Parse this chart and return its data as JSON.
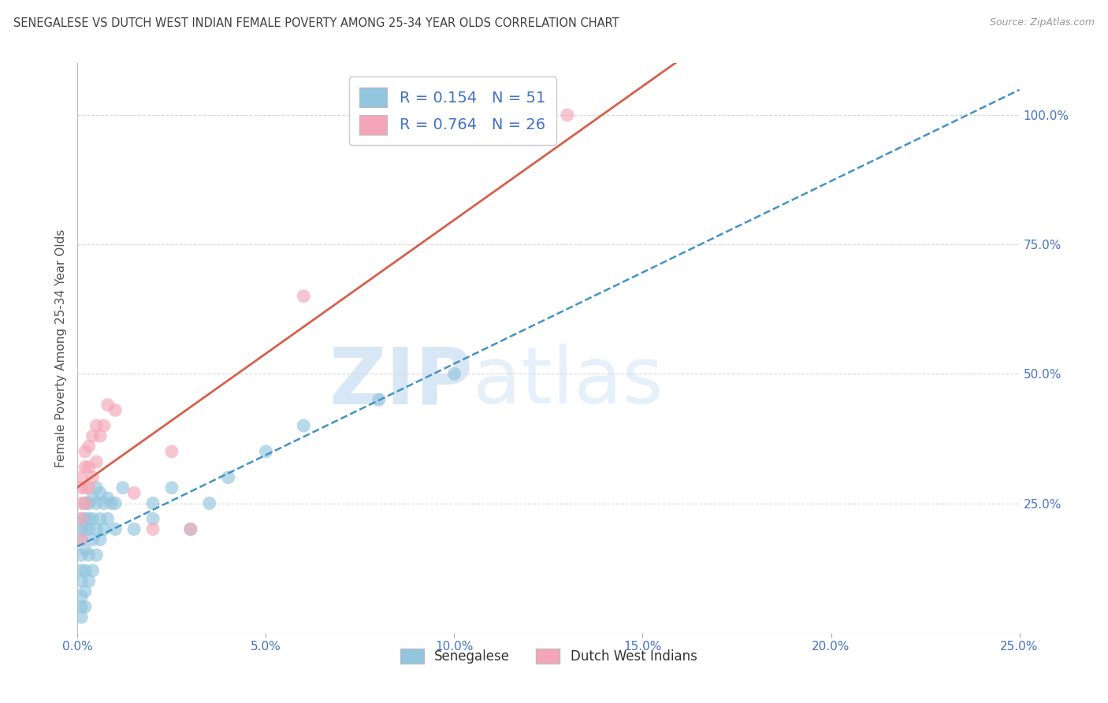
{
  "title": "SENEGALESE VS DUTCH WEST INDIAN FEMALE POVERTY AMONG 25-34 YEAR OLDS CORRELATION CHART",
  "source": "Source: ZipAtlas.com",
  "ylabel": "Female Poverty Among 25-34 Year Olds",
  "xlim": [
    0.0,
    0.25
  ],
  "ylim": [
    0.0,
    1.1
  ],
  "xtick_labels": [
    "0.0%",
    "5.0%",
    "10.0%",
    "15.0%",
    "20.0%",
    "25.0%"
  ],
  "xtick_vals": [
    0.0,
    0.05,
    0.1,
    0.15,
    0.2,
    0.25
  ],
  "ytick_labels_right": [
    "25.0%",
    "50.0%",
    "75.0%",
    "100.0%"
  ],
  "ytick_vals_right": [
    0.25,
    0.5,
    0.75,
    1.0
  ],
  "legend_label1": "Senegalese",
  "legend_label2": "Dutch West Indians",
  "legend_r1": "R = 0.154",
  "legend_n1": "N = 51",
  "legend_r2": "R = 0.764",
  "legend_n2": "N = 26",
  "blue_scatter_color": "#92c5de",
  "pink_scatter_color": "#f4a6b8",
  "blue_line_color": "#4393c3",
  "pink_line_color": "#d6604d",
  "background_color": "#ffffff",
  "watermark": "ZIPatlas",
  "watermark_color": "#d0e8f8",
  "grid_color": "#d8d8d8",
  "title_color": "#404040",
  "axis_color": "#4472c4",
  "senegalese_x": [
    0.001,
    0.001,
    0.001,
    0.001,
    0.001,
    0.001,
    0.001,
    0.001,
    0.001,
    0.002,
    0.002,
    0.002,
    0.002,
    0.002,
    0.002,
    0.002,
    0.003,
    0.003,
    0.003,
    0.003,
    0.003,
    0.004,
    0.004,
    0.004,
    0.004,
    0.005,
    0.005,
    0.005,
    0.005,
    0.006,
    0.006,
    0.006,
    0.007,
    0.007,
    0.008,
    0.008,
    0.009,
    0.01,
    0.01,
    0.012,
    0.015,
    0.02,
    0.02,
    0.025,
    0.03,
    0.035,
    0.04,
    0.05,
    0.06,
    0.08,
    0.1
  ],
  "senegalese_y": [
    0.03,
    0.05,
    0.07,
    0.1,
    0.12,
    0.15,
    0.18,
    0.2,
    0.22,
    0.05,
    0.08,
    0.12,
    0.16,
    0.2,
    0.22,
    0.25,
    0.1,
    0.15,
    0.2,
    0.22,
    0.25,
    0.12,
    0.18,
    0.22,
    0.26,
    0.15,
    0.2,
    0.25,
    0.28,
    0.18,
    0.22,
    0.27,
    0.2,
    0.25,
    0.22,
    0.26,
    0.25,
    0.2,
    0.25,
    0.28,
    0.2,
    0.22,
    0.25,
    0.28,
    0.2,
    0.25,
    0.3,
    0.35,
    0.4,
    0.45,
    0.5
  ],
  "dutch_x": [
    0.001,
    0.001,
    0.001,
    0.001,
    0.001,
    0.002,
    0.002,
    0.002,
    0.002,
    0.003,
    0.003,
    0.003,
    0.004,
    0.004,
    0.005,
    0.005,
    0.006,
    0.007,
    0.008,
    0.01,
    0.015,
    0.02,
    0.025,
    0.03,
    0.06,
    0.13
  ],
  "dutch_y": [
    0.18,
    0.22,
    0.25,
    0.28,
    0.3,
    0.25,
    0.28,
    0.32,
    0.35,
    0.28,
    0.32,
    0.36,
    0.3,
    0.38,
    0.33,
    0.4,
    0.38,
    0.4,
    0.44,
    0.43,
    0.27,
    0.2,
    0.35,
    0.2,
    0.65,
    1.0
  ]
}
